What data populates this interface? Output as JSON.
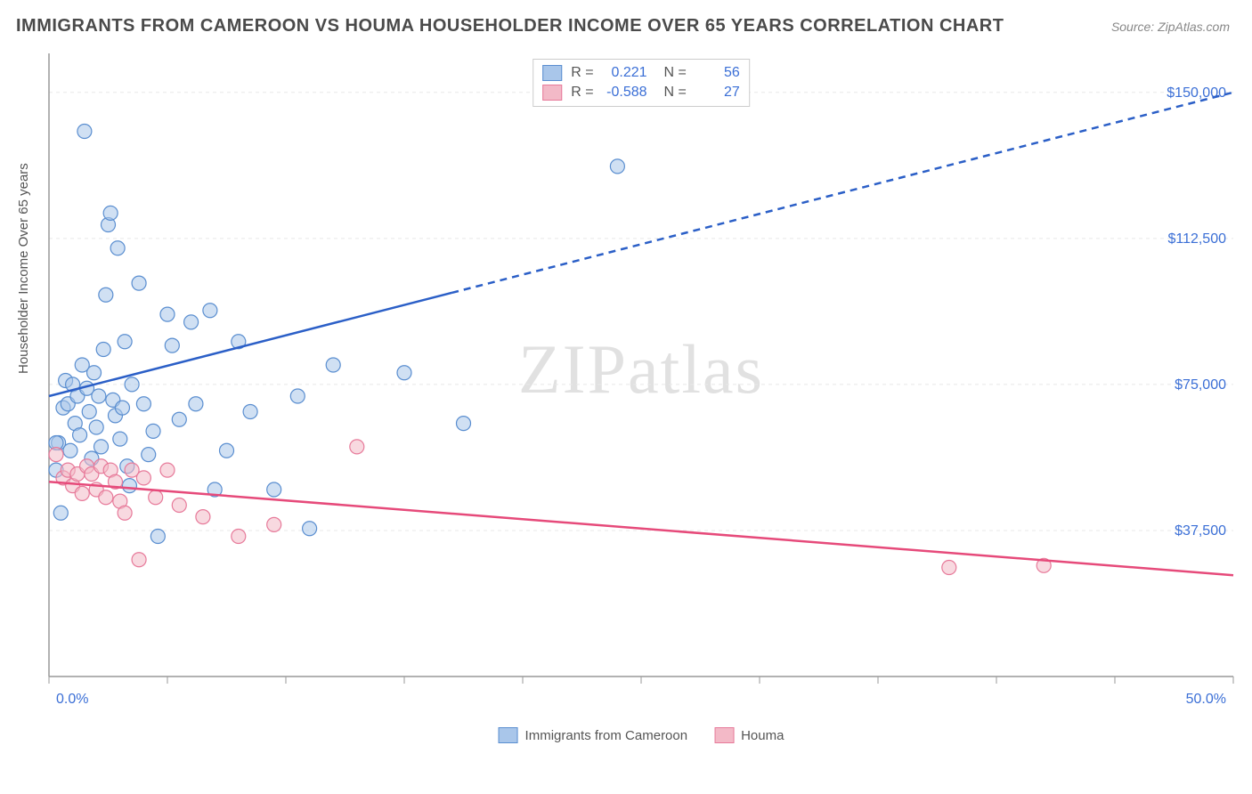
{
  "title": "IMMIGRANTS FROM CAMEROON VS HOUMA HOUSEHOLDER INCOME OVER 65 YEARS CORRELATION CHART",
  "source": "Source: ZipAtlas.com",
  "watermark_a": "ZIP",
  "watermark_b": "atlas",
  "y_axis_label": "Householder Income Over 65 years",
  "chart": {
    "type": "scatter",
    "background_color": "#ffffff",
    "grid_color": "#e8e8e8",
    "axis_color": "#999999",
    "xlim": [
      0,
      50
    ],
    "ylim": [
      0,
      160000
    ],
    "x_ticks": [
      0,
      5,
      10,
      15,
      20,
      25,
      30,
      35,
      40,
      45,
      50
    ],
    "x_tick_labels": {
      "0": "0.0%",
      "50": "50.0%"
    },
    "y_ticks": [
      37500,
      75000,
      112500,
      150000
    ],
    "y_tick_labels": {
      "37500": "$37,500",
      "75000": "$75,000",
      "112500": "$112,500",
      "150000": "$150,000"
    },
    "tick_font_color": "#3b6fd6",
    "tick_font_size": 16,
    "marker_radius": 8,
    "marker_opacity": 0.55,
    "series": [
      {
        "name": "Immigrants from Cameroon",
        "color_fill": "#a9c6ea",
        "color_stroke": "#5a8ed0",
        "R": "0.221",
        "N": "56",
        "trend": {
          "x1": 0,
          "y1": 72000,
          "x2": 17,
          "y2": 97000,
          "x2_ext": 50,
          "y2_ext": 150000,
          "color": "#2b5fc7",
          "dash_after_x": 17,
          "width": 2.5
        },
        "points": [
          [
            0.3,
            53000
          ],
          [
            0.4,
            60000
          ],
          [
            0.5,
            42000
          ],
          [
            0.6,
            69000
          ],
          [
            0.7,
            76000
          ],
          [
            0.8,
            70000
          ],
          [
            0.9,
            58000
          ],
          [
            1.0,
            75000
          ],
          [
            1.1,
            65000
          ],
          [
            1.2,
            72000
          ],
          [
            1.3,
            62000
          ],
          [
            1.4,
            80000
          ],
          [
            1.5,
            140000
          ],
          [
            1.6,
            74000
          ],
          [
            1.7,
            68000
          ],
          [
            1.8,
            56000
          ],
          [
            1.9,
            78000
          ],
          [
            2.0,
            64000
          ],
          [
            2.1,
            72000
          ],
          [
            2.2,
            59000
          ],
          [
            2.3,
            84000
          ],
          [
            2.4,
            98000
          ],
          [
            2.5,
            116000
          ],
          [
            2.6,
            119000
          ],
          [
            2.7,
            71000
          ],
          [
            2.8,
            67000
          ],
          [
            2.9,
            110000
          ],
          [
            3.0,
            61000
          ],
          [
            3.1,
            69000
          ],
          [
            3.2,
            86000
          ],
          [
            3.3,
            54000
          ],
          [
            3.4,
            49000
          ],
          [
            3.5,
            75000
          ],
          [
            3.8,
            101000
          ],
          [
            4.0,
            70000
          ],
          [
            4.2,
            57000
          ],
          [
            4.4,
            63000
          ],
          [
            4.6,
            36000
          ],
          [
            5.0,
            93000
          ],
          [
            5.2,
            85000
          ],
          [
            5.5,
            66000
          ],
          [
            6.0,
            91000
          ],
          [
            6.2,
            70000
          ],
          [
            6.8,
            94000
          ],
          [
            7.0,
            48000
          ],
          [
            7.5,
            58000
          ],
          [
            8.0,
            86000
          ],
          [
            8.5,
            68000
          ],
          [
            9.5,
            48000
          ],
          [
            10.5,
            72000
          ],
          [
            11.0,
            38000
          ],
          [
            12.0,
            80000
          ],
          [
            15.0,
            78000
          ],
          [
            17.5,
            65000
          ],
          [
            24.0,
            131000
          ],
          [
            0.3,
            60000
          ]
        ]
      },
      {
        "name": "Houma",
        "color_fill": "#f3b9c7",
        "color_stroke": "#e77a9a",
        "R": "-0.588",
        "N": "27",
        "trend": {
          "x1": 0,
          "y1": 50000,
          "x2": 50,
          "y2": 26000,
          "x2_ext": 50,
          "y2_ext": 26000,
          "color": "#e64a7a",
          "dash_after_x": 999,
          "width": 2.5
        },
        "points": [
          [
            0.3,
            57000
          ],
          [
            0.6,
            51000
          ],
          [
            0.8,
            53000
          ],
          [
            1.0,
            49000
          ],
          [
            1.2,
            52000
          ],
          [
            1.4,
            47000
          ],
          [
            1.6,
            54000
          ],
          [
            1.8,
            52000
          ],
          [
            2.0,
            48000
          ],
          [
            2.2,
            54000
          ],
          [
            2.4,
            46000
          ],
          [
            2.6,
            53000
          ],
          [
            2.8,
            50000
          ],
          [
            3.0,
            45000
          ],
          [
            3.2,
            42000
          ],
          [
            3.5,
            53000
          ],
          [
            3.8,
            30000
          ],
          [
            4.0,
            51000
          ],
          [
            4.5,
            46000
          ],
          [
            5.0,
            53000
          ],
          [
            5.5,
            44000
          ],
          [
            6.5,
            41000
          ],
          [
            8.0,
            36000
          ],
          [
            9.5,
            39000
          ],
          [
            13.0,
            59000
          ],
          [
            38.0,
            28000
          ],
          [
            42.0,
            28500
          ]
        ]
      }
    ]
  },
  "legend_bottom": [
    {
      "label": "Immigrants from Cameroon",
      "fill": "#a9c6ea",
      "stroke": "#5a8ed0"
    },
    {
      "label": "Houma",
      "fill": "#f3b9c7",
      "stroke": "#e77a9a"
    }
  ]
}
